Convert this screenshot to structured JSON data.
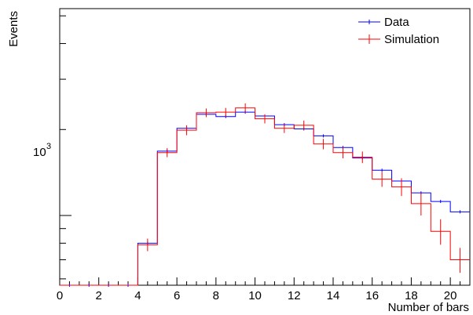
{
  "chart_data": {
    "type": "step-histogram",
    "xlabel": "Number of bars",
    "ylabel": "Events",
    "yscale": "log",
    "xlim": [
      0,
      21
    ],
    "ylim": [
      570,
      5300
    ],
    "x_ticks": [
      0,
      2,
      4,
      6,
      8,
      10,
      12,
      14,
      16,
      18,
      20
    ],
    "y_tick_label": {
      "base": "10",
      "exp": "3",
      "value": 1000
    },
    "legend": {
      "position": "top-right"
    },
    "series": [
      {
        "name": "Data",
        "color": "#0000ff",
        "errors": false,
        "values": [
          570,
          570,
          570,
          570,
          800,
          1680,
          2020,
          2260,
          2220,
          2300,
          2230,
          2080,
          2010,
          1900,
          1730,
          1590,
          1440,
          1320,
          1200,
          1120,
          1030
        ]
      },
      {
        "name": "Simulation",
        "color": "#ff0000",
        "errors": true,
        "values": [
          570,
          570,
          570,
          570,
          790,
          1660,
          1990,
          2290,
          2300,
          2380,
          2180,
          2020,
          2070,
          1780,
          1660,
          1600,
          1340,
          1260,
          1100,
          880,
          700
        ],
        "yerr": [
          0,
          0,
          0,
          0,
          40,
          60,
          80,
          80,
          80,
          90,
          80,
          75,
          80,
          75,
          75,
          75,
          80,
          90,
          100,
          90,
          70
        ]
      }
    ]
  }
}
